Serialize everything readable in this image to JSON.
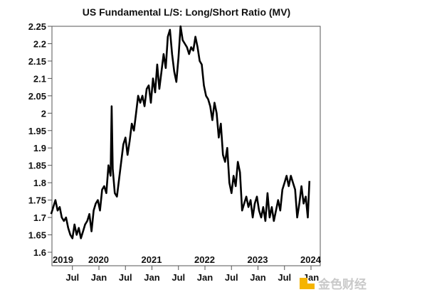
{
  "chart_data": {
    "type": "line",
    "title": "US Fundamental L/S: Long/Short Ratio (MV)",
    "xlabel": "",
    "ylabel": "",
    "xlim": [
      2019.1,
      2024.15
    ],
    "ylim": [
      1.575,
      2.25
    ],
    "yticks": [
      "2.25",
      "2.2",
      "2.15",
      "2.1",
      "2.05",
      "2",
      "1.95",
      "1.9",
      "1.85",
      "1.8",
      "1.75",
      "1.7",
      "1.65",
      "1.6"
    ],
    "year_labels": [
      "2019",
      "2020",
      "2021",
      "2022",
      "2023",
      "2024"
    ],
    "month_ticks": [
      {
        "t": 2019.5,
        "label": "Jul"
      },
      {
        "t": 2020.0,
        "label": "Jan"
      },
      {
        "t": 2020.5,
        "label": "Jul"
      },
      {
        "t": 2021.0,
        "label": "Jan"
      },
      {
        "t": 2021.5,
        "label": "Jul"
      },
      {
        "t": 2022.0,
        "label": "Jan"
      },
      {
        "t": 2022.5,
        "label": "Jul"
      },
      {
        "t": 2023.0,
        "label": "Jan"
      },
      {
        "t": 2023.5,
        "label": "Jul"
      },
      {
        "t": 2024.0,
        "label": "Jan"
      }
    ],
    "grid": false,
    "series": [
      {
        "name": "Long/Short Ratio (MV)",
        "color": "#000000",
        "x": [
          2019.1,
          2019.14,
          2019.18,
          2019.22,
          2019.26,
          2019.3,
          2019.34,
          2019.38,
          2019.42,
          2019.46,
          2019.5,
          2019.54,
          2019.58,
          2019.62,
          2019.66,
          2019.7,
          2019.74,
          2019.78,
          2019.82,
          2019.86,
          2019.9,
          2019.94,
          2019.98,
          2020.02,
          2020.06,
          2020.1,
          2020.14,
          2020.18,
          2020.22,
          2020.24,
          2020.26,
          2020.3,
          2020.34,
          2020.38,
          2020.42,
          2020.46,
          2020.5,
          2020.54,
          2020.58,
          2020.62,
          2020.66,
          2020.7,
          2020.74,
          2020.78,
          2020.82,
          2020.86,
          2020.9,
          2020.94,
          2020.98,
          2021.02,
          2021.06,
          2021.1,
          2021.14,
          2021.18,
          2021.22,
          2021.26,
          2021.3,
          2021.34,
          2021.38,
          2021.42,
          2021.46,
          2021.5,
          2021.54,
          2021.58,
          2021.62,
          2021.66,
          2021.7,
          2021.74,
          2021.78,
          2021.82,
          2021.86,
          2021.9,
          2021.94,
          2021.98,
          2022.02,
          2022.06,
          2022.1,
          2022.14,
          2022.18,
          2022.22,
          2022.26,
          2022.3,
          2022.34,
          2022.38,
          2022.42,
          2022.46,
          2022.5,
          2022.54,
          2022.58,
          2022.62,
          2022.66,
          2022.7,
          2022.74,
          2022.78,
          2022.82,
          2022.86,
          2022.9,
          2022.94,
          2022.98,
          2023.02,
          2023.06,
          2023.1,
          2023.14,
          2023.18,
          2023.22,
          2023.26,
          2023.3,
          2023.34,
          2023.38,
          2023.42,
          2023.46,
          2023.5,
          2023.54,
          2023.58,
          2023.62,
          2023.66,
          2023.7,
          2023.74,
          2023.78,
          2023.82,
          2023.86,
          2023.9,
          2023.94,
          2023.97
        ],
        "y": [
          1.71,
          1.73,
          1.75,
          1.72,
          1.73,
          1.7,
          1.69,
          1.7,
          1.67,
          1.65,
          1.64,
          1.68,
          1.65,
          1.67,
          1.64,
          1.66,
          1.68,
          1.69,
          1.71,
          1.66,
          1.72,
          1.74,
          1.75,
          1.72,
          1.78,
          1.79,
          1.77,
          1.85,
          1.82,
          2.02,
          1.84,
          1.77,
          1.76,
          1.81,
          1.86,
          1.91,
          1.93,
          1.88,
          1.92,
          1.97,
          1.95,
          2.0,
          2.05,
          2.03,
          2.05,
          2.02,
          2.07,
          2.08,
          2.03,
          2.1,
          2.06,
          2.14,
          2.07,
          2.12,
          2.17,
          2.13,
          2.22,
          2.24,
          2.17,
          2.12,
          2.09,
          2.16,
          2.25,
          2.21,
          2.2,
          2.19,
          2.17,
          2.19,
          2.18,
          2.22,
          2.19,
          2.15,
          2.14,
          2.08,
          2.05,
          2.04,
          2.02,
          1.98,
          2.03,
          2.0,
          1.93,
          1.97,
          1.88,
          1.86,
          1.9,
          1.8,
          1.77,
          1.82,
          1.79,
          1.86,
          1.83,
          1.72,
          1.74,
          1.76,
          1.73,
          1.75,
          1.7,
          1.74,
          1.76,
          1.72,
          1.7,
          1.73,
          1.69,
          1.77,
          1.7,
          1.73,
          1.69,
          1.72,
          1.75,
          1.72,
          1.78,
          1.8,
          1.82,
          1.79,
          1.82,
          1.8,
          1.78,
          1.7,
          1.74,
          1.79,
          1.74,
          1.76,
          1.7,
          1.805
        ]
      }
    ]
  },
  "watermark": {
    "text": "金色财经",
    "color": "#f5b400"
  }
}
